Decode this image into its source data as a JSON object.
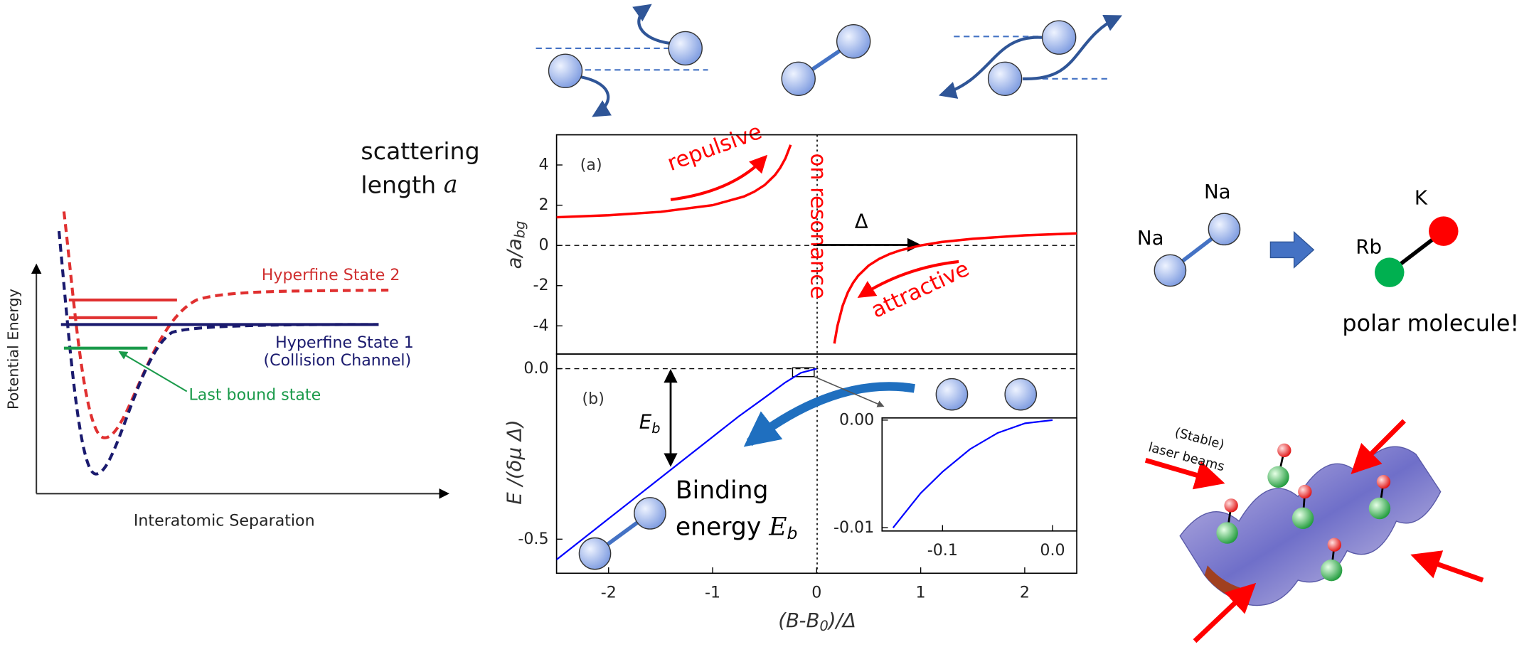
{
  "chart_data": [
    {
      "type": "line",
      "label": "(a)",
      "y_label": "a/a",
      "y_label_sub": "bg",
      "color": "#ff0000",
      "x": [
        -2.5,
        -2,
        -1.5,
        -1,
        -0.7,
        -0.6,
        -0.5,
        -0.4,
        -0.35,
        -0.3,
        -0.25,
        null,
        0.17,
        0.2,
        0.25,
        0.3,
        0.35,
        0.4,
        0.5,
        0.6,
        0.7,
        0.8,
        1,
        1.2,
        1.5,
        2,
        2.5
      ],
      "values": [
        1.4,
        1.5,
        1.67,
        2,
        2.43,
        2.67,
        3,
        3.5,
        3.86,
        4.33,
        5,
        null,
        -4.88,
        -4,
        -3,
        -2.33,
        -1.86,
        -1.5,
        -1,
        -0.67,
        -0.43,
        -0.25,
        0,
        0.17,
        0.33,
        0.5,
        0.6
      ],
      "xlim": [
        -2.5,
        2.5
      ],
      "ylim": [
        -5.4,
        5.5
      ],
      "yticks": [
        -4,
        -2,
        0,
        2,
        4
      ],
      "annotations": {
        "repulsive": "repulsive",
        "on_resonance": "on resonance",
        "attractive": "attractive",
        "delta": "Δ"
      }
    },
    {
      "type": "line",
      "label": "(b)",
      "y_label": "E /(δμ Δ)",
      "x_label": "(B-B",
      "x_label_sub": "0",
      "x_label_end": ")/Δ",
      "color": "#0000ff",
      "x": [
        -2.5,
        -2,
        -1.5,
        -1,
        -0.75,
        -0.5,
        -0.3,
        -0.15,
        0
      ],
      "values": [
        -0.56,
        -0.44,
        -0.32,
        -0.2,
        -0.14,
        -0.085,
        -0.04,
        -0.012,
        0
      ],
      "xlim": [
        -2.5,
        2.5
      ],
      "ylim": [
        -0.6,
        0.043
      ],
      "xticks": [
        -2,
        -1,
        0,
        1,
        2
      ],
      "yticks": [
        {
          "value": 0,
          "label": "0.0"
        },
        -0.5
      ],
      "annotations": {
        "eb": "E",
        "eb_sub": "b",
        "binding": "Binding",
        "energy": "energy",
        "energy_symbol": "E",
        "energy_symbol_sub": "b"
      }
    },
    {
      "type": "line",
      "color": "#0000ff",
      "x": [
        -0.145,
        -0.12,
        -0.1,
        -0.075,
        -0.05,
        -0.025,
        0
      ],
      "values": [
        -0.01,
        -0.0068,
        -0.0048,
        -0.0027,
        -0.0012,
        -0.0003,
        0
      ],
      "xlim": [
        -0.155,
        0.022
      ],
      "ylim": [
        -0.0103,
        0.0002
      ],
      "xticks": [
        -0.1,
        {
          "value": 0,
          "label": "0.0"
        }
      ],
      "yticks": [
        {
          "value": 0,
          "label": "0.00"
        },
        -0.01
      ]
    }
  ],
  "diagram": {
    "scattering": {
      "line1": "scattering",
      "line2": "length",
      "symbol": "a"
    },
    "potential": {
      "y_label": "Potential Energy",
      "x_label": "Interatomic Separation",
      "state2": "Hyperfine State 2",
      "state1": "Hyperfine State 1",
      "channel": "(Collision Channel)",
      "bound": "Last bound state"
    },
    "molecules": {
      "na1": "Na",
      "na2": "Na",
      "k": "K",
      "rb": "Rb",
      "polar": "polar molecule!"
    },
    "lattice": {
      "line1": "(Stable)",
      "line2": "laser beams"
    }
  }
}
